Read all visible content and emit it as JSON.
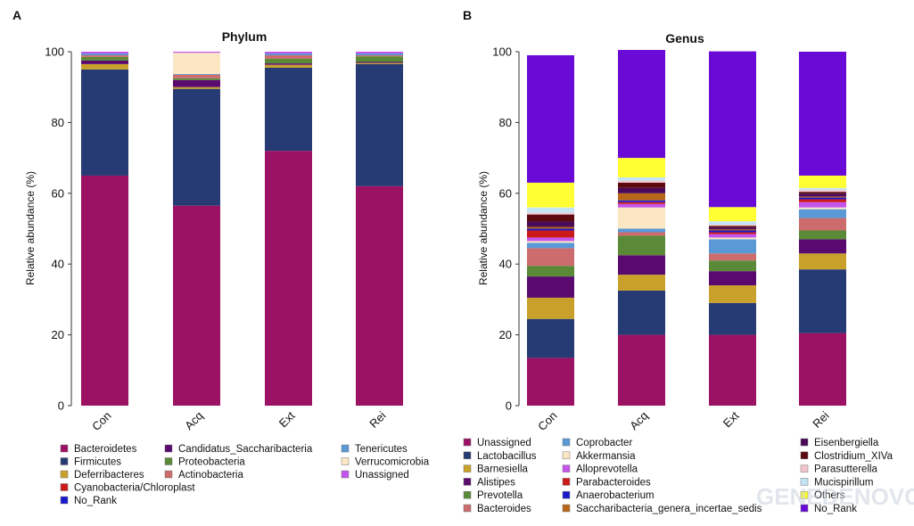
{
  "panels": {
    "a": {
      "letter": "A"
    },
    "b": {
      "letter": "B"
    }
  },
  "watermark": "GENEDENOVO 天生物",
  "chart_data": [
    {
      "type": "bar",
      "stacked": true,
      "title": "Phylum",
      "xlabel": "",
      "ylabel": "Relative abundance (%)",
      "ylim": [
        0,
        100
      ],
      "yticks": [
        0,
        20,
        40,
        60,
        80,
        100
      ],
      "categories": [
        "Con",
        "Acq",
        "Ext",
        "Rei"
      ],
      "legend_placement": "bottom",
      "series": [
        {
          "name": "Bacteroidetes",
          "color": "#9b1163",
          "values": [
            65,
            56.5,
            72,
            62
          ]
        },
        {
          "name": "Firmicutes",
          "color": "#263a73",
          "values": [
            30,
            33,
            23.5,
            34.5
          ]
        },
        {
          "name": "Deferribacteres",
          "color": "#c8a02a",
          "values": [
            1.5,
            0.5,
            0.8,
            0.3
          ]
        },
        {
          "name": "Cyanobacteria/Chloroplast",
          "color": "#cc1a1a",
          "values": [
            0,
            0,
            0,
            0
          ]
        },
        {
          "name": "No_Rank",
          "color": "#1a1acc",
          "values": [
            0,
            0,
            0,
            0
          ]
        },
        {
          "name": "Candidatus_Saccharibacteria",
          "color": "#5a0a6e",
          "values": [
            1,
            2,
            0.4,
            0.3
          ]
        },
        {
          "name": "Proteobacteria",
          "color": "#5a8a38",
          "values": [
            1,
            0.5,
            1.3,
            1.6
          ]
        },
        {
          "name": "Actinobacteria",
          "color": "#cc6c6c",
          "values": [
            0.5,
            1,
            1,
            0.3
          ]
        },
        {
          "name": "Tenericutes",
          "color": "#5a98d6",
          "values": [
            0.5,
            0.2,
            0.5,
            0.5
          ]
        },
        {
          "name": "Verrucomicrobia",
          "color": "#fbe7c4",
          "values": [
            0,
            6,
            0,
            0
          ]
        },
        {
          "name": "Unassigned",
          "color": "#c454ec",
          "values": [
            0.5,
            0.3,
            0.5,
            0.5
          ]
        }
      ]
    },
    {
      "type": "bar",
      "stacked": true,
      "title": "Genus",
      "xlabel": "",
      "ylabel": "Relative abundance (%)",
      "ylim": [
        0,
        100
      ],
      "yticks": [
        0,
        20,
        40,
        60,
        80,
        100
      ],
      "categories": [
        "Con",
        "Acq",
        "Ext",
        "Rei"
      ],
      "legend_placement": "bottom",
      "series": [
        {
          "name": "Unassigned",
          "color": "#9b1163",
          "values": [
            13.5,
            20,
            20,
            20.5
          ]
        },
        {
          "name": "Lactobacillus",
          "color": "#263a73",
          "values": [
            11,
            12.5,
            9,
            18
          ]
        },
        {
          "name": "Barnesiella",
          "color": "#c8a02a",
          "values": [
            6,
            4.5,
            5,
            4.5
          ]
        },
        {
          "name": "Alistipes",
          "color": "#5a0a6e",
          "values": [
            6,
            5.5,
            4,
            4
          ]
        },
        {
          "name": "Prevotella",
          "color": "#5a8a38",
          "values": [
            3,
            5.5,
            3,
            2.5
          ]
        },
        {
          "name": "Bacteroides",
          "color": "#cc6c6c",
          "values": [
            5,
            1,
            2,
            3.5
          ]
        },
        {
          "name": "Coprobacter",
          "color": "#5a98d6",
          "values": [
            1.5,
            1,
            4,
            2.5
          ]
        },
        {
          "name": "Akkermansia",
          "color": "#fbe7c4",
          "values": [
            0.5,
            6,
            0.5,
            0.5
          ]
        },
        {
          "name": "Alloprevotella",
          "color": "#c454ec",
          "values": [
            1,
            1,
            1,
            1.5
          ]
        },
        {
          "name": "Parabacteroides",
          "color": "#cc1a1a",
          "values": [
            2,
            0.5,
            0.5,
            0.8
          ]
        },
        {
          "name": "Anaerobacterium",
          "color": "#1a1acc",
          "values": [
            0.5,
            0.5,
            0.5,
            0.5
          ]
        },
        {
          "name": "Saccharibacteria_genera_incertae_sedis",
          "color": "#b8661a",
          "values": [
            0.5,
            2,
            0.3,
            0.3
          ]
        },
        {
          "name": "Eisenbergiella",
          "color": "#4a0a5a",
          "values": [
            1.5,
            1.5,
            0.5,
            0.8
          ]
        },
        {
          "name": "Clostridium_XIVa",
          "color": "#5c0a10",
          "values": [
            2,
            1.5,
            0.5,
            0.5
          ]
        },
        {
          "name": "Parasutterella",
          "color": "#f4c4cc",
          "values": [
            0.5,
            0.5,
            0.3,
            0.5
          ]
        },
        {
          "name": "Mucispirillum",
          "color": "#c4e4f4",
          "values": [
            1.5,
            1,
            1,
            0.6
          ]
        },
        {
          "name": "Others",
          "color": "#ffff33",
          "values": [
            7,
            5.5,
            4,
            3.5
          ]
        },
        {
          "name": "No_Rank",
          "color": "#6a0ad6",
          "values": [
            36,
            30.5,
            44,
            35
          ]
        }
      ]
    }
  ]
}
